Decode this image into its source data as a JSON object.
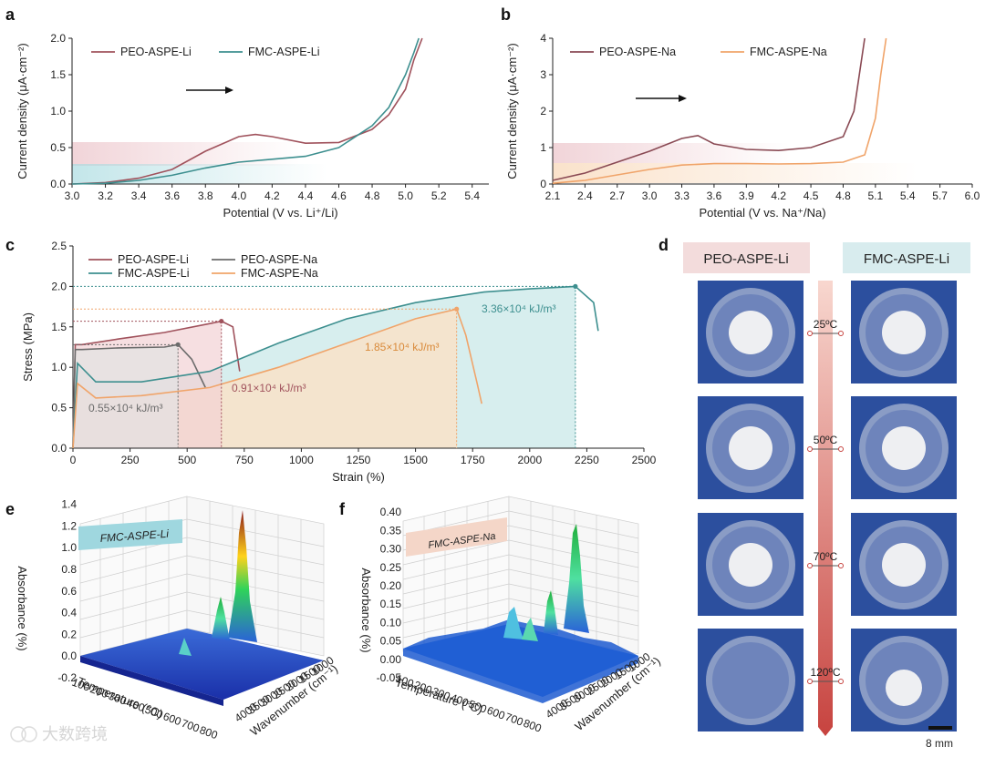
{
  "panel_letters": {
    "a": "a",
    "b": "b",
    "c": "c",
    "d": "d",
    "e": "e",
    "f": "f"
  },
  "colors": {
    "peo_li": "#a0525c",
    "fmc_li": "#3d8f8f",
    "peo_na": "#8a4a54",
    "fmc_na": "#f0a46a",
    "gray": "#6b6b6b",
    "orange_annot": "#d98a3a",
    "teal_annot": "#3d8f8f"
  },
  "chart_data": [
    {
      "type": "line",
      "panel": "a",
      "xlabel": "Potential (V vs. Li⁺/Li)",
      "ylabel": "Current density (μA·cm⁻²)",
      "xlim": [
        3.0,
        5.5
      ],
      "ylim": [
        0,
        2.0
      ],
      "xticks": [
        "3.0",
        "3.2",
        "3.4",
        "3.6",
        "3.8",
        "4.0",
        "4.2",
        "4.4",
        "4.6",
        "4.8",
        "5.0",
        "5.2",
        "5.4"
      ],
      "yticks": [
        "0.0",
        "0.5",
        "1.0",
        "1.5",
        "2.0"
      ],
      "legend_position": "top-left",
      "series": [
        {
          "name": "PEO-ASPE-Li",
          "x": [
            3.0,
            3.2,
            3.4,
            3.6,
            3.8,
            4.0,
            4.1,
            4.2,
            4.4,
            4.6,
            4.8,
            4.9,
            5.0,
            5.05,
            5.1
          ],
          "y": [
            0.0,
            0.02,
            0.08,
            0.2,
            0.45,
            0.65,
            0.68,
            0.65,
            0.56,
            0.57,
            0.75,
            0.95,
            1.3,
            1.7,
            2.0
          ]
        },
        {
          "name": "FMC-ASPE-Li",
          "x": [
            3.0,
            3.2,
            3.4,
            3.6,
            3.8,
            4.0,
            4.2,
            4.4,
            4.6,
            4.8,
            4.9,
            5.0,
            5.05,
            5.08
          ],
          "y": [
            0.0,
            0.01,
            0.05,
            0.12,
            0.22,
            0.3,
            0.34,
            0.38,
            0.5,
            0.8,
            1.05,
            1.5,
            1.8,
            2.0
          ]
        }
      ]
    },
    {
      "type": "line",
      "panel": "b",
      "xlabel": "Potential (V vs. Na⁺/Na)",
      "ylabel": "Current density (μA·cm⁻²)",
      "xlim": [
        2.1,
        6.0
      ],
      "ylim": [
        0,
        4
      ],
      "xticks": [
        "2.1",
        "2.4",
        "2.7",
        "3.0",
        "3.3",
        "3.6",
        "3.9",
        "4.2",
        "4.5",
        "4.8",
        "5.1",
        "5.4",
        "5.7",
        "6.0"
      ],
      "yticks": [
        "0",
        "1",
        "2",
        "3",
        "4"
      ],
      "legend_position": "top-left",
      "series": [
        {
          "name": "PEO-ASPE-Na",
          "x": [
            2.1,
            2.4,
            2.7,
            3.0,
            3.3,
            3.45,
            3.6,
            3.9,
            4.2,
            4.5,
            4.8,
            4.9,
            4.95,
            5.0
          ],
          "y": [
            0.1,
            0.3,
            0.6,
            0.9,
            1.25,
            1.33,
            1.1,
            0.95,
            0.92,
            1.0,
            1.3,
            2.0,
            3.0,
            4.0
          ]
        },
        {
          "name": "FMC-ASPE-Na",
          "x": [
            2.1,
            2.4,
            2.7,
            3.0,
            3.3,
            3.6,
            3.9,
            4.2,
            4.5,
            4.8,
            5.0,
            5.1,
            5.15,
            5.2
          ],
          "y": [
            0.02,
            0.1,
            0.25,
            0.4,
            0.52,
            0.56,
            0.56,
            0.55,
            0.56,
            0.6,
            0.8,
            1.8,
            3.0,
            4.0
          ]
        }
      ]
    },
    {
      "type": "line",
      "panel": "c",
      "xlabel": "Strain (%)",
      "ylabel": "Stress (MPa)",
      "xlim": [
        0,
        2500
      ],
      "ylim": [
        0,
        2.5
      ],
      "xticks": [
        "0",
        "250",
        "500",
        "750",
        "1000",
        "1250",
        "1500",
        "1750",
        "2000",
        "2250",
        "2500"
      ],
      "yticks": [
        "0.0",
        "0.5",
        "1.0",
        "1.5",
        "2.0",
        "2.5"
      ],
      "legend_position": "top-left",
      "series": [
        {
          "name": "PEO-ASPE-Li",
          "x": [
            0,
            10,
            40,
            200,
            400,
            600,
            650,
            700,
            730
          ],
          "y": [
            0,
            1.28,
            1.28,
            1.35,
            1.43,
            1.54,
            1.57,
            1.5,
            0.95
          ]
        },
        {
          "name": "PEO-ASPE-Na",
          "x": [
            0,
            10,
            40,
            200,
            400,
            460,
            520,
            580
          ],
          "y": [
            0,
            1.22,
            1.22,
            1.24,
            1.25,
            1.28,
            1.1,
            0.75
          ]
        },
        {
          "name": "FMC-ASPE-Li",
          "x": [
            0,
            20,
            100,
            300,
            600,
            900,
            1200,
            1500,
            1800,
            2000,
            2200,
            2280,
            2300
          ],
          "y": [
            0,
            1.05,
            0.82,
            0.82,
            0.95,
            1.3,
            1.6,
            1.8,
            1.93,
            1.97,
            2.0,
            1.8,
            1.45
          ]
        },
        {
          "name": "FMC-ASPE-Na",
          "x": [
            0,
            20,
            100,
            300,
            600,
            900,
            1200,
            1500,
            1680,
            1720,
            1770,
            1790
          ],
          "y": [
            0,
            0.8,
            0.62,
            0.65,
            0.75,
            1.0,
            1.3,
            1.6,
            1.72,
            1.4,
            0.8,
            0.55
          ]
        }
      ],
      "annotations": [
        "0.55×10⁴ kJ/m³",
        "0.91×10⁴ kJ/m³",
        "1.85×10⁴ kJ/m³",
        "3.36×10⁴ kJ/m³"
      ]
    },
    {
      "type": "surface",
      "panel": "e",
      "label": "FMC-ASPE-Li",
      "zlabel": "Absorbance (%)",
      "xlabel": "Temperature (°C)",
      "ylabel": "Wavenumber (cm⁻¹)",
      "zticks": [
        "-0.2",
        "0.0",
        "0.2",
        "0.4",
        "0.6",
        "0.8",
        "1.0",
        "1.2",
        "1.4"
      ],
      "xticks": [
        "100",
        "200",
        "300",
        "400",
        "500",
        "600",
        "700",
        "800"
      ],
      "yticks": [
        "1000",
        "1500",
        "2000",
        "2500",
        "3000",
        "3500",
        "4000"
      ]
    },
    {
      "type": "surface",
      "panel": "f",
      "label": "FMC-ASPE-Na",
      "zlabel": "Absorbance (%)",
      "xlabel": "Temperature (°C)",
      "ylabel": "Wavenumber (cm⁻¹)",
      "zticks": [
        "-0.05",
        "0.00",
        "0.05",
        "0.10",
        "0.15",
        "0.20",
        "0.25",
        "0.30",
        "0.35",
        "0.40"
      ],
      "xticks": [
        "100",
        "200",
        "300",
        "400",
        "500",
        "600",
        "700",
        "800"
      ],
      "yticks": [
        "1000",
        "1500",
        "2000",
        "2500",
        "3000",
        "3500",
        "4000"
      ]
    }
  ],
  "panel_d": {
    "left_header": "PEO-ASPE-Li",
    "right_header": "FMC-ASPE-Li",
    "temperatures": [
      "25ºC",
      "50ºC",
      "70ºC",
      "120ºC"
    ],
    "scale_bar": "8 mm"
  },
  "watermark": "大数跨境"
}
